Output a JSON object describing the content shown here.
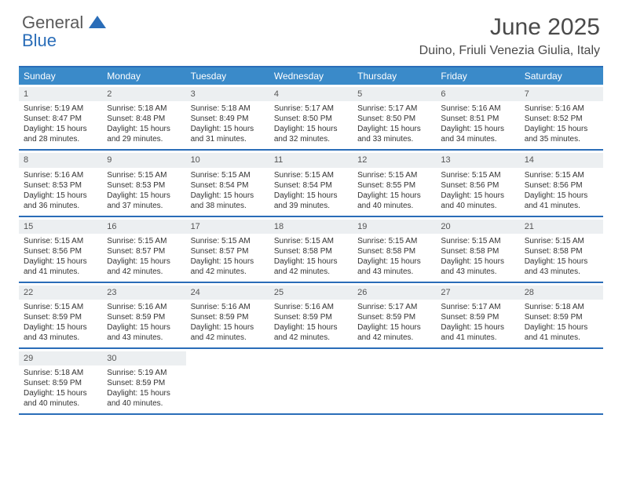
{
  "logo": {
    "text1": "General",
    "text2": "Blue"
  },
  "title": "June 2025",
  "location": "Duino, Friuli Venezia Giulia, Italy",
  "colors": {
    "header_bar": "#3a8ac9",
    "border": "#2a6db8",
    "daynum_bg": "#eceff1",
    "logo_gray": "#5a5a5a",
    "logo_blue": "#2a6db8"
  },
  "day_headers": [
    "Sunday",
    "Monday",
    "Tuesday",
    "Wednesday",
    "Thursday",
    "Friday",
    "Saturday"
  ],
  "weeks": [
    [
      {
        "n": "1",
        "sr": "5:19 AM",
        "ss": "8:47 PM",
        "dl": "15 hours and 28 minutes."
      },
      {
        "n": "2",
        "sr": "5:18 AM",
        "ss": "8:48 PM",
        "dl": "15 hours and 29 minutes."
      },
      {
        "n": "3",
        "sr": "5:18 AM",
        "ss": "8:49 PM",
        "dl": "15 hours and 31 minutes."
      },
      {
        "n": "4",
        "sr": "5:17 AM",
        "ss": "8:50 PM",
        "dl": "15 hours and 32 minutes."
      },
      {
        "n": "5",
        "sr": "5:17 AM",
        "ss": "8:50 PM",
        "dl": "15 hours and 33 minutes."
      },
      {
        "n": "6",
        "sr": "5:16 AM",
        "ss": "8:51 PM",
        "dl": "15 hours and 34 minutes."
      },
      {
        "n": "7",
        "sr": "5:16 AM",
        "ss": "8:52 PM",
        "dl": "15 hours and 35 minutes."
      }
    ],
    [
      {
        "n": "8",
        "sr": "5:16 AM",
        "ss": "8:53 PM",
        "dl": "15 hours and 36 minutes."
      },
      {
        "n": "9",
        "sr": "5:15 AM",
        "ss": "8:53 PM",
        "dl": "15 hours and 37 minutes."
      },
      {
        "n": "10",
        "sr": "5:15 AM",
        "ss": "8:54 PM",
        "dl": "15 hours and 38 minutes."
      },
      {
        "n": "11",
        "sr": "5:15 AM",
        "ss": "8:54 PM",
        "dl": "15 hours and 39 minutes."
      },
      {
        "n": "12",
        "sr": "5:15 AM",
        "ss": "8:55 PM",
        "dl": "15 hours and 40 minutes."
      },
      {
        "n": "13",
        "sr": "5:15 AM",
        "ss": "8:56 PM",
        "dl": "15 hours and 40 minutes."
      },
      {
        "n": "14",
        "sr": "5:15 AM",
        "ss": "8:56 PM",
        "dl": "15 hours and 41 minutes."
      }
    ],
    [
      {
        "n": "15",
        "sr": "5:15 AM",
        "ss": "8:56 PM",
        "dl": "15 hours and 41 minutes."
      },
      {
        "n": "16",
        "sr": "5:15 AM",
        "ss": "8:57 PM",
        "dl": "15 hours and 42 minutes."
      },
      {
        "n": "17",
        "sr": "5:15 AM",
        "ss": "8:57 PM",
        "dl": "15 hours and 42 minutes."
      },
      {
        "n": "18",
        "sr": "5:15 AM",
        "ss": "8:58 PM",
        "dl": "15 hours and 42 minutes."
      },
      {
        "n": "19",
        "sr": "5:15 AM",
        "ss": "8:58 PM",
        "dl": "15 hours and 43 minutes."
      },
      {
        "n": "20",
        "sr": "5:15 AM",
        "ss": "8:58 PM",
        "dl": "15 hours and 43 minutes."
      },
      {
        "n": "21",
        "sr": "5:15 AM",
        "ss": "8:58 PM",
        "dl": "15 hours and 43 minutes."
      }
    ],
    [
      {
        "n": "22",
        "sr": "5:15 AM",
        "ss": "8:59 PM",
        "dl": "15 hours and 43 minutes."
      },
      {
        "n": "23",
        "sr": "5:16 AM",
        "ss": "8:59 PM",
        "dl": "15 hours and 43 minutes."
      },
      {
        "n": "24",
        "sr": "5:16 AM",
        "ss": "8:59 PM",
        "dl": "15 hours and 42 minutes."
      },
      {
        "n": "25",
        "sr": "5:16 AM",
        "ss": "8:59 PM",
        "dl": "15 hours and 42 minutes."
      },
      {
        "n": "26",
        "sr": "5:17 AM",
        "ss": "8:59 PM",
        "dl": "15 hours and 42 minutes."
      },
      {
        "n": "27",
        "sr": "5:17 AM",
        "ss": "8:59 PM",
        "dl": "15 hours and 41 minutes."
      },
      {
        "n": "28",
        "sr": "5:18 AM",
        "ss": "8:59 PM",
        "dl": "15 hours and 41 minutes."
      }
    ],
    [
      {
        "n": "29",
        "sr": "5:18 AM",
        "ss": "8:59 PM",
        "dl": "15 hours and 40 minutes."
      },
      {
        "n": "30",
        "sr": "5:19 AM",
        "ss": "8:59 PM",
        "dl": "15 hours and 40 minutes."
      },
      null,
      null,
      null,
      null,
      null
    ]
  ],
  "labels": {
    "sunrise": "Sunrise: ",
    "sunset": "Sunset: ",
    "daylight": "Daylight: "
  }
}
